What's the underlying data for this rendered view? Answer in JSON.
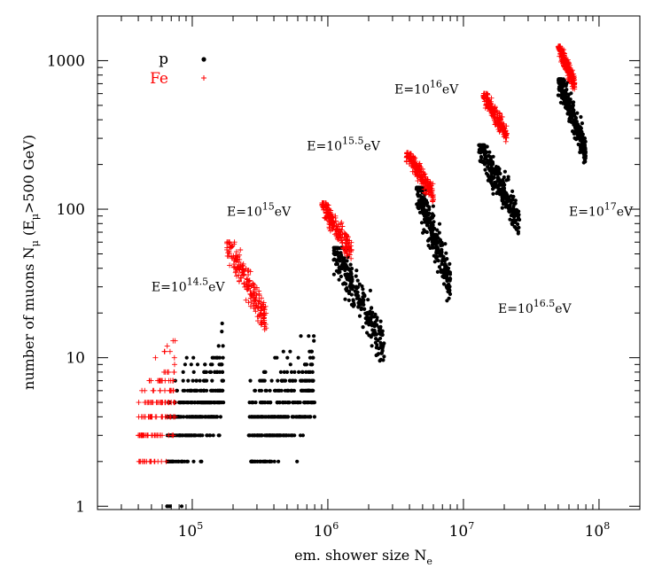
{
  "chart_data": {
    "type": "scatter",
    "xscale": "log",
    "yscale": "log",
    "xlim": [
      20000,
      200000000
    ],
    "ylim": [
      0.95,
      2000
    ],
    "grid": false,
    "legend_position": "top-left",
    "xlabel": {
      "text": "em. shower size N",
      "sub": "e"
    },
    "ylabel": {
      "pre": "number of muons N",
      "sub1": "μ",
      "mid": " (E",
      "sub2": "μ",
      "post": ">500 GeV)"
    },
    "x_ticks": [
      {
        "value": 100000,
        "base": "10",
        "exp": "5"
      },
      {
        "value": 1000000,
        "base": "10",
        "exp": "6"
      },
      {
        "value": 10000000,
        "base": "10",
        "exp": "7"
      },
      {
        "value": 100000000,
        "base": "10",
        "exp": "8"
      }
    ],
    "y_ticks": [
      {
        "value": 1,
        "label": "1"
      },
      {
        "value": 10,
        "label": "10"
      },
      {
        "value": 100,
        "label": "100"
      },
      {
        "value": 1000,
        "label": "1000"
      }
    ],
    "series": [
      {
        "name": "p",
        "color": "#000000",
        "marker": "dot"
      },
      {
        "name": "Fe",
        "color": "#ff0000",
        "marker": "plus"
      }
    ],
    "annotations": [
      {
        "pre": "E=10",
        "exp": "14.5",
        "post": "eV",
        "x": 50000,
        "y": 28
      },
      {
        "pre": "E=10",
        "exp": "15",
        "post": "eV",
        "x": 180000,
        "y": 90
      },
      {
        "pre": "E=10",
        "exp": "15.5",
        "post": "eV",
        "x": 700000,
        "y": 250
      },
      {
        "pre": "E=10",
        "exp": "16",
        "post": "eV",
        "x": 3100000,
        "y": 600
      },
      {
        "pre": "E=10",
        "exp": "16.5",
        "post": "eV",
        "x": 18000000,
        "y": 20
      },
      {
        "pre": "E=10",
        "exp": "17",
        "post": "eV",
        "x": 60000000,
        "y": 90
      }
    ],
    "groups": [
      {
        "energy_eV": "10^14.5",
        "p": {
          "x_range": [
            65000,
            170000
          ],
          "y_range": [
            1,
            17
          ],
          "n": 300,
          "discrete_y": true
        },
        "Fe": {
          "x_range": [
            40000,
            75000
          ],
          "y_range": [
            1,
            17
          ],
          "n": 160,
          "discrete_y": true
        }
      },
      {
        "energy_eV": "10^15",
        "p": {
          "x_range": [
            260000,
            800000
          ],
          "y_range": [
            1,
            17
          ],
          "n": 330,
          "discrete_y": true
        },
        "Fe": {
          "x_range": [
            180000,
            350000
          ],
          "y_range": [
            12,
            60
          ],
          "n": 200
        }
      },
      {
        "energy_eV": "10^15.5",
        "p": {
          "x_range": [
            1100000,
            2600000
          ],
          "y_range": [
            7,
            55
          ],
          "n": 260
        },
        "Fe": {
          "x_range": [
            900000,
            1500000
          ],
          "y_range": [
            40,
            110
          ],
          "n": 200
        }
      },
      {
        "energy_eV": "10^16",
        "p": {
          "x_range": [
            4500000,
            8000000
          ],
          "y_range": [
            19,
            140
          ],
          "n": 260
        },
        "Fe": {
          "x_range": [
            3800000,
            6000000
          ],
          "y_range": [
            100,
            240
          ],
          "n": 200
        }
      },
      {
        "energy_eV": "10^16.5",
        "p": {
          "x_range": [
            13000000,
            26000000
          ],
          "y_range": [
            55,
            270
          ],
          "n": 260
        },
        "Fe": {
          "x_range": [
            14000000,
            21000000
          ],
          "y_range": [
            250,
            600
          ],
          "n": 200
        }
      },
      {
        "energy_eV": "10^17",
        "p": {
          "x_range": [
            50000000,
            80000000
          ],
          "y_range": [
            170,
            750
          ],
          "n": 260
        },
        "Fe": {
          "x_range": [
            50000000,
            66000000
          ],
          "y_range": [
            580,
            1250
          ],
          "n": 200
        }
      }
    ]
  }
}
